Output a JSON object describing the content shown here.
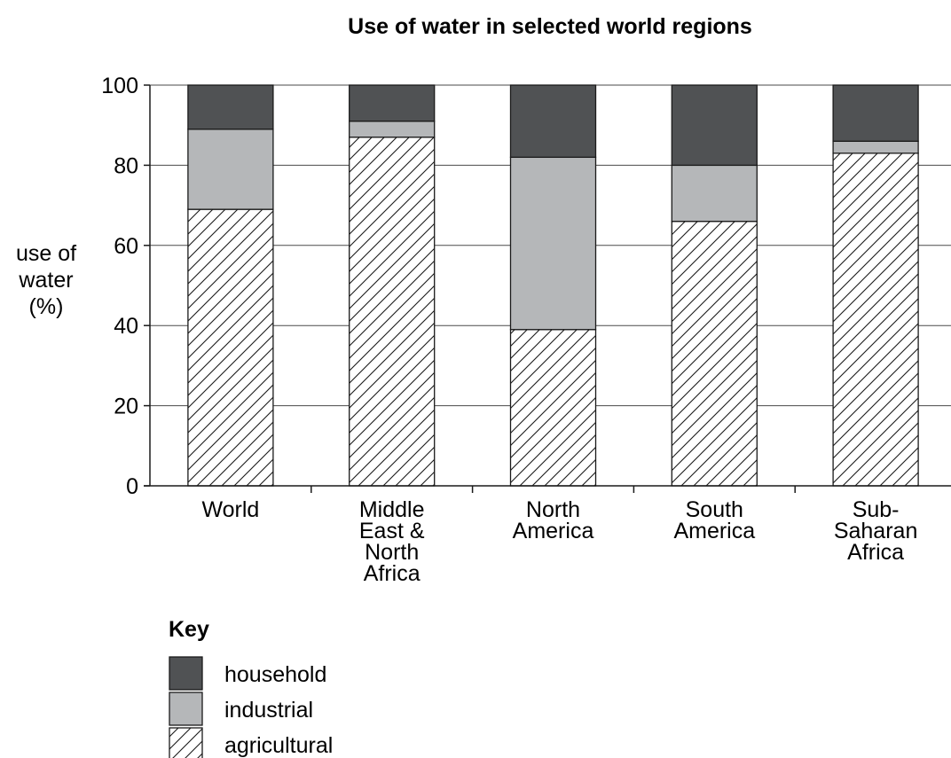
{
  "chart_data": {
    "type": "bar",
    "stacked": true,
    "title": "Use of water in selected world regions",
    "ylabel_lines": [
      "use of",
      "water",
      "(%)"
    ],
    "ylim": [
      0,
      100
    ],
    "yticks": [
      0,
      20,
      40,
      60,
      80,
      100
    ],
    "grid": true,
    "categories": [
      [
        "World"
      ],
      [
        "Middle",
        "East &",
        "North",
        "Africa"
      ],
      [
        "North",
        "America"
      ],
      [
        "South",
        "America"
      ],
      [
        "Sub-",
        "Saharan",
        "Africa"
      ]
    ],
    "series": [
      {
        "name": "agricultural",
        "fill": "hatch",
        "values": [
          69,
          87,
          39,
          66,
          83
        ]
      },
      {
        "name": "industrial",
        "color": "#b5b7b9",
        "values": [
          20,
          4,
          43,
          14,
          3
        ]
      },
      {
        "name": "household",
        "color": "#505254",
        "values": [
          11,
          9,
          18,
          20,
          14
        ]
      }
    ],
    "legend": {
      "title": "Key",
      "placement": "bottom-left",
      "order": [
        "household",
        "industrial",
        "agricultural"
      ]
    }
  }
}
